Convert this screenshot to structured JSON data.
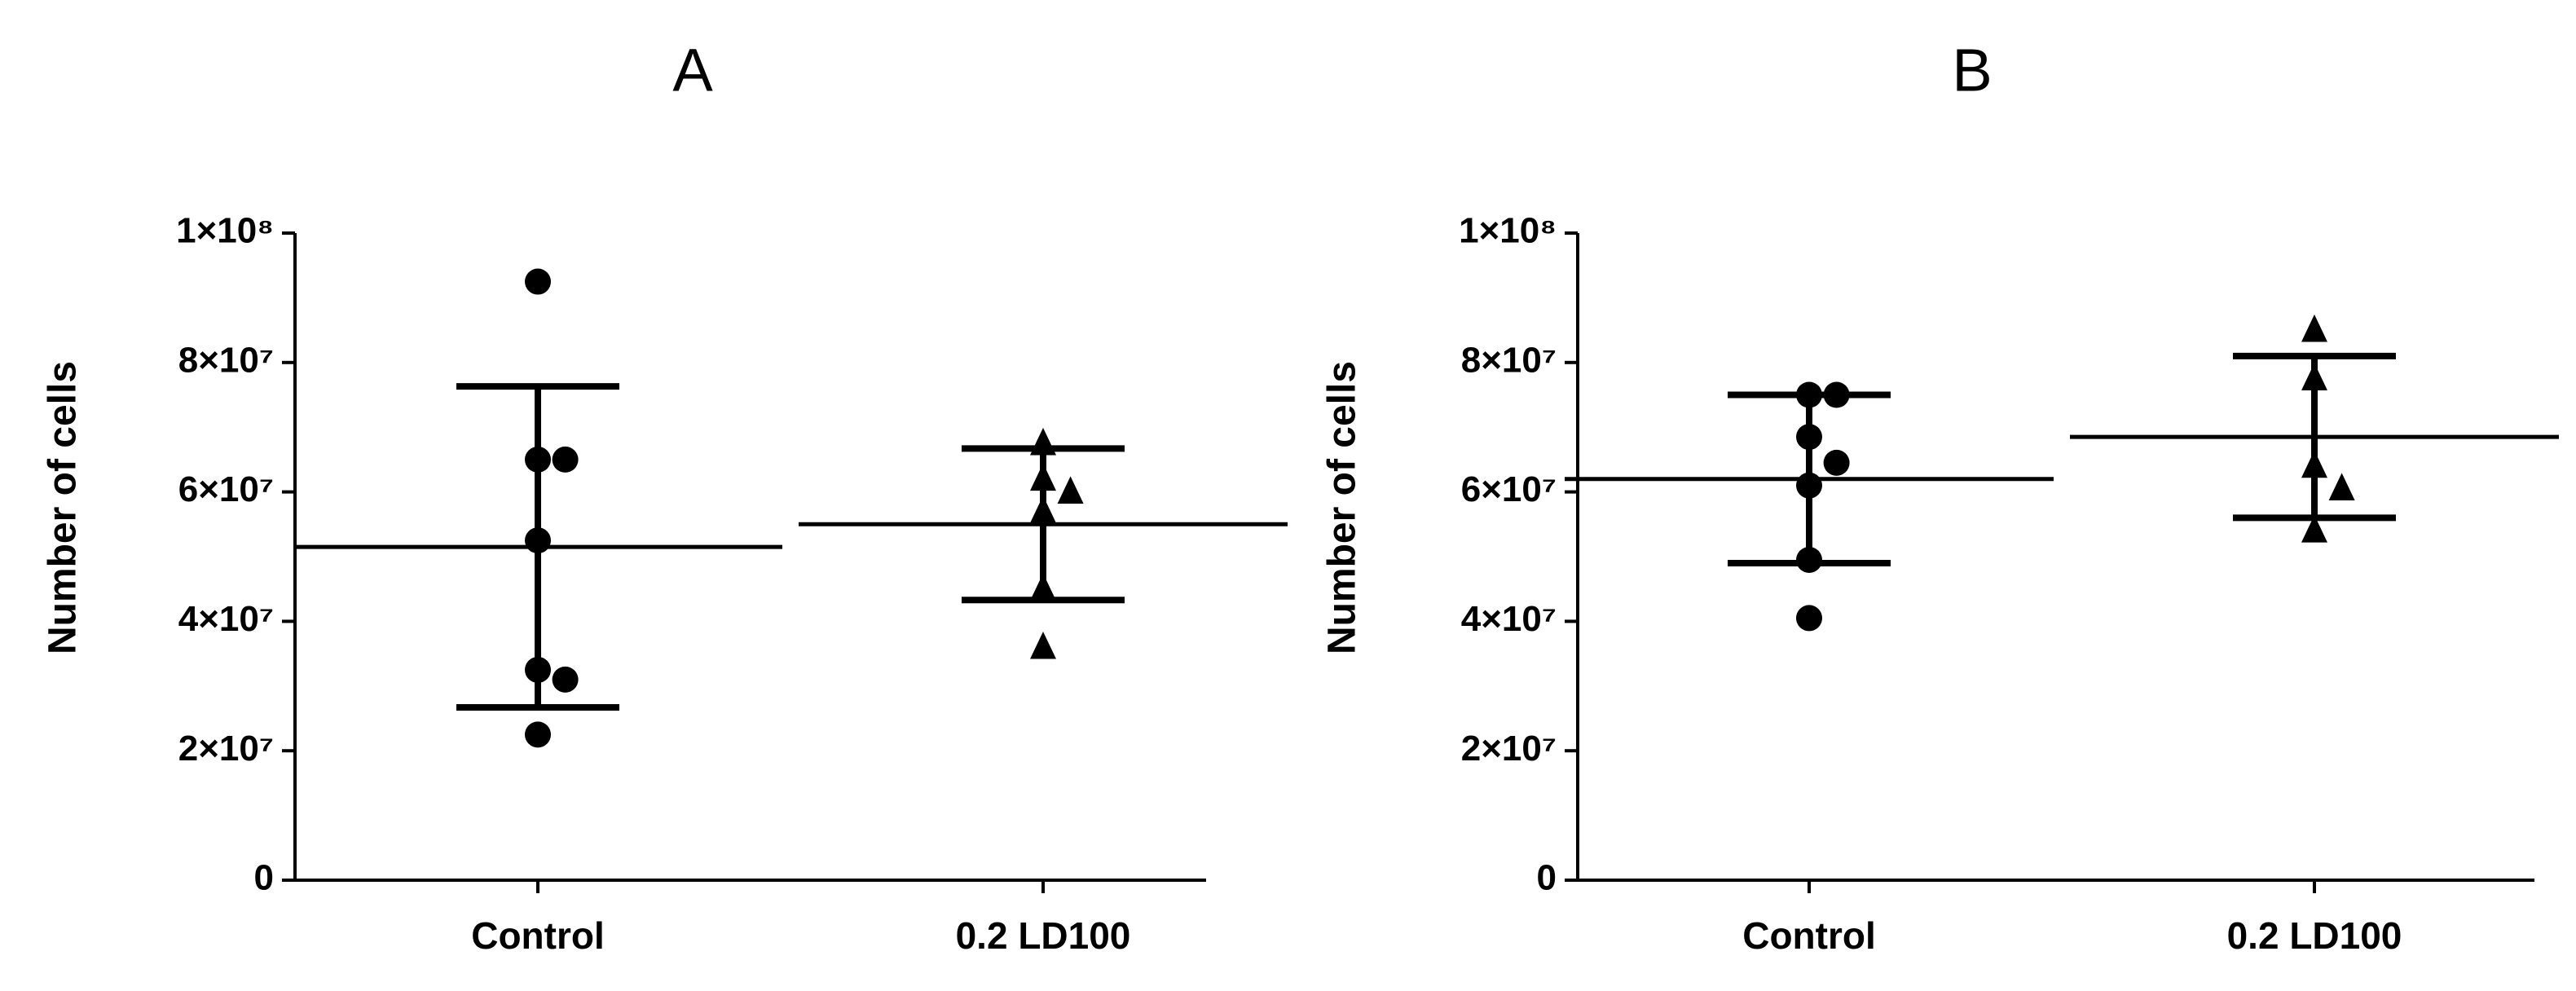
{
  "chart_data": [
    {
      "type": "dotplot",
      "title": "A",
      "y_label": "Number of cells",
      "categories": [
        "Control",
        "0.2 LD100"
      ],
      "markers": [
        "circle",
        "triangle"
      ],
      "color": "#000000",
      "values": [
        [
          92500000,
          65000000,
          65000000,
          52500000,
          32500000,
          31000000,
          22500000
        ],
        [
          67500000,
          62000000,
          60000000,
          57000000,
          45000000,
          36000000
        ]
      ],
      "mean": [
        51500000,
        55000000
      ],
      "sd": [
        24800000,
        11700000
      ],
      "ylim": [
        0,
        100000000
      ],
      "yticks": [
        0,
        {
          "value": 20000000,
          "label": "2×10⁷"
        },
        {
          "value": 40000000,
          "label": "4×10⁷"
        },
        {
          "value": 60000000,
          "label": "6×10⁷"
        },
        {
          "value": 80000000,
          "label": "8×10⁷"
        },
        {
          "value": 100000000,
          "label": "1×10⁸"
        }
      ]
    },
    {
      "type": "dotplot",
      "title": "B",
      "y_label": "Number of cells",
      "categories": [
        "Control",
        "0.2 LD100"
      ],
      "markers": [
        "circle",
        "triangle"
      ],
      "color": "#000000",
      "values": [
        [
          75000000,
          75000000,
          68500000,
          64500000,
          61000000,
          49500000,
          40500000
        ],
        [
          85000000,
          77500000,
          64000000,
          60500000,
          54000000
        ]
      ],
      "mean": [
        62000000,
        68500000
      ],
      "sd": [
        13000000,
        12500000
      ],
      "ylim": [
        0,
        100000000
      ],
      "yticks": [
        0,
        {
          "value": 20000000,
          "label": "2×10⁷"
        },
        {
          "value": 40000000,
          "label": "4×10⁷"
        },
        {
          "value": 60000000,
          "label": "6×10⁷"
        },
        {
          "value": 80000000,
          "label": "8×10⁷"
        },
        {
          "value": 100000000,
          "label": "1×10⁸"
        }
      ]
    }
  ]
}
